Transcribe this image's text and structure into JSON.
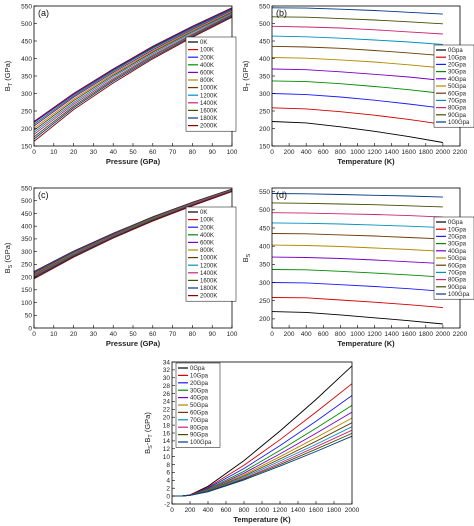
{
  "palette": [
    "#000000",
    "#d40000",
    "#1a1aff",
    "#008a00",
    "#7a00c8",
    "#b08a00",
    "#6a3a00",
    "#0090c0",
    "#cc2277",
    "#405000",
    "#003880",
    "#8a0000",
    "#555555"
  ],
  "chart_data": [
    {
      "type": "line",
      "panel_label": "(a)",
      "xlabel": "Pressure (GPa)",
      "ylabel": "B",
      "ylabel_sub": "T",
      "ylabel_unit": " (GPa)",
      "xlim": [
        0,
        100
      ],
      "ylim": [
        150,
        550
      ],
      "xticks": [
        "0",
        "10",
        "20",
        "30",
        "40",
        "50",
        "60",
        "70",
        "80",
        "90",
        "100"
      ],
      "yticks": [
        "150",
        "200",
        "250",
        "300",
        "350",
        "400",
        "450",
        "500",
        "550"
      ],
      "x": [
        0,
        20,
        40,
        60,
        80,
        100
      ],
      "legend_position": "right",
      "series": [
        {
          "name": "0K",
          "values": [
            220,
            300,
            370,
            435,
            492,
            545
          ]
        },
        {
          "name": "100K",
          "values": [
            219,
            299,
            369,
            434,
            491,
            544
          ]
        },
        {
          "name": "200K",
          "values": [
            217,
            297,
            367,
            432,
            489,
            542
          ]
        },
        {
          "name": "400K",
          "values": [
            212,
            293,
            364,
            429,
            486,
            540
          ]
        },
        {
          "name": "600K",
          "values": [
            207,
            289,
            360,
            425,
            483,
            537
          ]
        },
        {
          "name": "800K",
          "values": [
            201,
            284,
            356,
            421,
            480,
            534
          ]
        },
        {
          "name": "1000K",
          "values": [
            195,
            279,
            352,
            418,
            477,
            532
          ]
        },
        {
          "name": "1200K",
          "values": [
            189,
            274,
            348,
            414,
            474,
            529
          ]
        },
        {
          "name": "1400K",
          "values": [
            183,
            269,
            343,
            410,
            470,
            526
          ]
        },
        {
          "name": "1600K",
          "values": [
            176,
            264,
            339,
            407,
            467,
            524
          ]
        },
        {
          "name": "1800K",
          "values": [
            170,
            259,
            335,
            403,
            464,
            521
          ]
        },
        {
          "name": "2000K",
          "values": [
            163,
            254,
            330,
            399,
            461,
            518
          ]
        }
      ]
    },
    {
      "type": "line",
      "panel_label": "(b)",
      "xlabel": "Temperature (K)",
      "ylabel": "B",
      "ylabel_sub": "T",
      "ylabel_unit": " (GPa)",
      "xlim": [
        0,
        2200
      ],
      "ylim": [
        150,
        550
      ],
      "xticks": [
        "0",
        "200",
        "400",
        "600",
        "800",
        "1000",
        "1200",
        "1400",
        "1600",
        "1800",
        "2000",
        "2200"
      ],
      "yticks": [
        "150",
        "200",
        "250",
        "300",
        "350",
        "400",
        "450",
        "500",
        "550"
      ],
      "x": [
        0,
        400,
        800,
        1200,
        1600,
        2000
      ],
      "legend_position": "right",
      "series": [
        {
          "name": "0Gpa",
          "values": [
            220,
            216,
            205,
            192,
            177,
            160
          ]
        },
        {
          "name": "10Gpa",
          "values": [
            259,
            256,
            248,
            238,
            226,
            212
          ]
        },
        {
          "name": "20Gpa",
          "values": [
            300,
            297,
            290,
            281,
            270,
            258
          ]
        },
        {
          "name": "30Gpa",
          "values": [
            336,
            334,
            328,
            320,
            311,
            300
          ]
        },
        {
          "name": "40Gpa",
          "values": [
            370,
            368,
            362,
            355,
            347,
            337
          ]
        },
        {
          "name": "50Gpa",
          "values": [
            403,
            401,
            396,
            390,
            382,
            373
          ]
        },
        {
          "name": "60Gpa",
          "values": [
            435,
            433,
            429,
            423,
            416,
            408
          ]
        },
        {
          "name": "70Gpa",
          "values": [
            464,
            462,
            458,
            453,
            447,
            440
          ]
        },
        {
          "name": "80Gpa",
          "values": [
            492,
            490,
            487,
            482,
            476,
            470
          ]
        },
        {
          "name": "90Gpa",
          "values": [
            519,
            518,
            514,
            510,
            505,
            499
          ]
        },
        {
          "name": "100Gpa",
          "values": [
            545,
            544,
            541,
            537,
            532,
            527
          ]
        }
      ]
    },
    {
      "type": "line",
      "panel_label": "(c)",
      "xlabel": "Pressure (GPa)",
      "ylabel": "B",
      "ylabel_sub": "S",
      "ylabel_unit": " (GPa)",
      "xlim": [
        0,
        100
      ],
      "ylim": [
        0,
        550
      ],
      "xticks": [
        "0",
        "10",
        "20",
        "30",
        "40",
        "50",
        "60",
        "70",
        "80",
        "90",
        "100"
      ],
      "yticks": [
        "0",
        "50",
        "100",
        "150",
        "200",
        "250",
        "300",
        "350",
        "400",
        "450",
        "500",
        "550"
      ],
      "x": [
        0,
        20,
        40,
        60,
        80,
        100
      ],
      "legend_position": "right",
      "series": [
        {
          "name": "0K",
          "values": [
            222,
            302,
            372,
            437,
            494,
            546
          ]
        },
        {
          "name": "100K",
          "values": [
            221,
            301,
            371,
            436,
            493,
            545
          ]
        },
        {
          "name": "200K",
          "values": [
            220,
            300,
            370,
            435,
            492,
            544
          ]
        },
        {
          "name": "400K",
          "values": [
            218,
            298,
            369,
            434,
            491,
            544
          ]
        },
        {
          "name": "600K",
          "values": [
            215,
            296,
            367,
            432,
            490,
            543
          ]
        },
        {
          "name": "800K",
          "values": [
            212,
            294,
            365,
            431,
            489,
            542
          ]
        },
        {
          "name": "1000K",
          "values": [
            209,
            291,
            363,
            429,
            487,
            541
          ]
        },
        {
          "name": "1200K",
          "values": [
            206,
            289,
            361,
            427,
            486,
            540
          ]
        },
        {
          "name": "1400K",
          "values": [
            203,
            286,
            359,
            425,
            485,
            539
          ]
        },
        {
          "name": "1600K",
          "values": [
            200,
            284,
            357,
            424,
            483,
            538
          ]
        },
        {
          "name": "1800K",
          "values": [
            197,
            281,
            355,
            422,
            482,
            537
          ]
        },
        {
          "name": "2000K",
          "values": [
            193,
            278,
            353,
            420,
            480,
            536
          ]
        }
      ]
    },
    {
      "type": "line",
      "panel_label": "(d)",
      "xlabel": "Temperature (K)",
      "ylabel": "B",
      "ylabel_sub": "S",
      "ylabel_unit": "",
      "xlim": [
        0,
        2200
      ],
      "ylim": [
        175,
        560
      ],
      "xticks": [
        "0",
        "200",
        "400",
        "600",
        "800",
        "1000",
        "1200",
        "1400",
        "1600",
        "1800",
        "2000",
        "2200"
      ],
      "yticks": [
        "200",
        "250",
        "300",
        "350",
        "400",
        "450",
        "500",
        "550"
      ],
      "x": [
        0,
        400,
        800,
        1200,
        1600,
        2000
      ],
      "legend_position": "right",
      "series": [
        {
          "name": "0Gpa",
          "values": [
            220,
            218,
            211,
            203,
            195,
            186
          ]
        },
        {
          "name": "10Gpa",
          "values": [
            259,
            258,
            252,
            246,
            239,
            231
          ]
        },
        {
          "name": "20Gpa",
          "values": [
            300,
            299,
            294,
            289,
            283,
            276
          ]
        },
        {
          "name": "30Gpa",
          "values": [
            336,
            335,
            331,
            326,
            321,
            315
          ]
        },
        {
          "name": "40Gpa",
          "values": [
            370,
            369,
            366,
            362,
            357,
            352
          ]
        },
        {
          "name": "50Gpa",
          "values": [
            403,
            402,
            399,
            395,
            391,
            386
          ]
        },
        {
          "name": "60Gpa",
          "values": [
            435,
            434,
            431,
            428,
            424,
            420
          ]
        },
        {
          "name": "70Gpa",
          "values": [
            464,
            463,
            461,
            458,
            455,
            451
          ]
        },
        {
          "name": "80Gpa",
          "values": [
            492,
            491,
            489,
            487,
            484,
            480
          ]
        },
        {
          "name": "90Gpa",
          "values": [
            519,
            518,
            516,
            514,
            511,
            508
          ]
        },
        {
          "name": "100Gpa",
          "values": [
            545,
            544,
            542,
            540,
            538,
            535
          ]
        }
      ]
    },
    {
      "type": "line",
      "panel_label": "(e)",
      "xlabel": "Temperature (K)",
      "ylabel": "B",
      "ylabel_sub": "S",
      "ylabel_mid": "-B",
      "ylabel_sub2": "T",
      "ylabel_unit": " (GPa)",
      "xlim": [
        0,
        2000
      ],
      "ylim": [
        -2,
        34
      ],
      "xticks": [
        "0",
        "200",
        "400",
        "600",
        "800",
        "1000",
        "1200",
        "1400",
        "1600",
        "1800",
        "2000"
      ],
      "yticks": [
        "-2",
        "0",
        "2",
        "4",
        "6",
        "8",
        "10",
        "12",
        "14",
        "16",
        "18",
        "20",
        "22",
        "24",
        "26",
        "28",
        "30",
        "32",
        "34"
      ],
      "x": [
        0,
        100,
        200,
        400,
        800,
        1200,
        1600,
        2000
      ],
      "legend_position": "top-left",
      "series": [
        {
          "name": "0Gpa",
          "values": [
            0,
            0,
            0.3,
            2.5,
            9,
            16.5,
            24.5,
            33
          ]
        },
        {
          "name": "10Gpa",
          "values": [
            0,
            0,
            0.3,
            2.2,
            7.8,
            14.3,
            21.3,
            28.5
          ]
        },
        {
          "name": "20Gpa",
          "values": [
            0,
            0,
            0.2,
            2.0,
            7.0,
            12.8,
            19.0,
            25.5
          ]
        },
        {
          "name": "30Gpa",
          "values": [
            0,
            0,
            0.2,
            1.8,
            6.3,
            11.6,
            17.2,
            23
          ]
        },
        {
          "name": "40Gpa",
          "values": [
            0,
            0,
            0.2,
            1.6,
            5.8,
            10.7,
            15.9,
            21.3
          ]
        },
        {
          "name": "50Gpa",
          "values": [
            0,
            0,
            0.2,
            1.5,
            5.4,
            10.0,
            14.8,
            19.8
          ]
        },
        {
          "name": "60Gpa",
          "values": [
            0,
            0,
            0.2,
            1.4,
            5.1,
            9.4,
            13.9,
            18.6
          ]
        },
        {
          "name": "70Gpa",
          "values": [
            0,
            0,
            0.2,
            1.3,
            4.8,
            8.9,
            13.1,
            17.6
          ]
        },
        {
          "name": "80Gpa",
          "values": [
            0,
            0,
            0.2,
            1.2,
            4.5,
            8.4,
            12.5,
            16.7
          ]
        },
        {
          "name": "90Gpa",
          "values": [
            0,
            0,
            0.2,
            1.2,
            4.3,
            8.0,
            11.9,
            15.9
          ]
        },
        {
          "name": "100Gpa",
          "values": [
            0,
            0,
            0.2,
            1.1,
            4.1,
            7.6,
            11.3,
            15.2
          ]
        }
      ]
    }
  ]
}
